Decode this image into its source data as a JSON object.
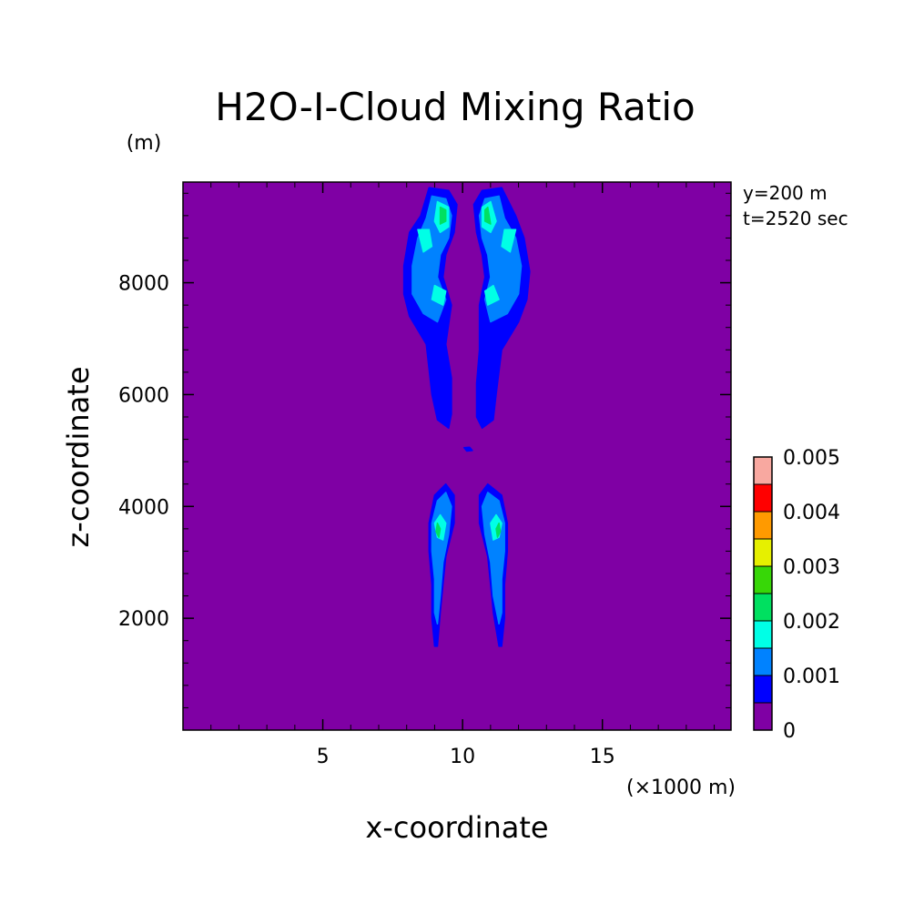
{
  "chart_data": {
    "type": "heatmap",
    "title": "H2O-I-Cloud Mixing Ratio",
    "xlabel": "x-coordinate",
    "ylabel": "z-coordinate",
    "x_unit": "(×1000 m)",
    "y_unit": "(m)",
    "xlim": [
      0,
      19.6
    ],
    "ylim": [
      0,
      9800
    ],
    "x_ticks": [
      5,
      10,
      15
    ],
    "y_ticks": [
      2000,
      4000,
      6000,
      8000
    ],
    "annotations": [
      "y=200 m",
      "t=2520 sec"
    ],
    "background_color": "#7f00a4",
    "colorbar": {
      "levels": [
        0,
        0.0005,
        0.001,
        0.0015,
        0.002,
        0.0025,
        0.003,
        0.0035,
        0.004,
        0.0045,
        0.005
      ],
      "colors": [
        "#7f00a4",
        "#0000ff",
        "#0082ff",
        "#00ffe6",
        "#00e060",
        "#37d707",
        "#e6f000",
        "#ff9a00",
        "#ff0000",
        "#f8a8a0"
      ],
      "tick_labels": [
        "0",
        "0.001",
        "0.002",
        "0.003",
        "0.004",
        "0.005"
      ],
      "tick_values": [
        0,
        0.001,
        0.002,
        0.003,
        0.004,
        0.005
      ]
    },
    "regions": [
      {
        "name": "upper-left-plume",
        "level": 1,
        "points": [
          [
            8.8,
            9700
          ],
          [
            9.5,
            9650
          ],
          [
            9.8,
            9400
          ],
          [
            9.7,
            8900
          ],
          [
            9.4,
            8500
          ],
          [
            9.3,
            8100
          ],
          [
            9.6,
            7600
          ],
          [
            9.4,
            6900
          ],
          [
            9.6,
            6300
          ],
          [
            9.6,
            5650
          ],
          [
            9.5,
            5400
          ],
          [
            9.1,
            5550
          ],
          [
            8.9,
            6000
          ],
          [
            8.7,
            6900
          ],
          [
            8.1,
            7400
          ],
          [
            7.9,
            7800
          ],
          [
            7.9,
            8300
          ],
          [
            8.1,
            8900
          ],
          [
            8.5,
            9200
          ],
          [
            8.8,
            9700
          ]
        ]
      },
      {
        "name": "upper-left-plume-inner",
        "level": 2,
        "points": [
          [
            8.9,
            9550
          ],
          [
            9.4,
            9500
          ],
          [
            9.6,
            9200
          ],
          [
            9.5,
            8800
          ],
          [
            9.2,
            8500
          ],
          [
            9.1,
            8100
          ],
          [
            9.4,
            7700
          ],
          [
            9.1,
            7300
          ],
          [
            8.6,
            7450
          ],
          [
            8.2,
            7800
          ],
          [
            8.2,
            8300
          ],
          [
            8.4,
            8800
          ],
          [
            8.7,
            9150
          ],
          [
            8.9,
            9550
          ]
        ]
      },
      {
        "name": "upper-left-core-a",
        "level": 3,
        "points": [
          [
            9.1,
            9450
          ],
          [
            9.5,
            9350
          ],
          [
            9.5,
            9000
          ],
          [
            9.2,
            8900
          ],
          [
            9.0,
            9100
          ],
          [
            9.1,
            9450
          ]
        ]
      },
      {
        "name": "upper-left-core-a-peak",
        "level": 4,
        "points": [
          [
            9.2,
            9350
          ],
          [
            9.4,
            9300
          ],
          [
            9.4,
            9100
          ],
          [
            9.2,
            9050
          ],
          [
            9.2,
            9350
          ]
        ]
      },
      {
        "name": "upper-left-core-b",
        "level": 3,
        "points": [
          [
            8.4,
            8950
          ],
          [
            8.8,
            8950
          ],
          [
            8.9,
            8650
          ],
          [
            8.6,
            8550
          ],
          [
            8.4,
            8950
          ]
        ]
      },
      {
        "name": "upper-left-core-c",
        "level": 3,
        "points": [
          [
            9.0,
            7950
          ],
          [
            9.4,
            7850
          ],
          [
            9.3,
            7600
          ],
          [
            8.9,
            7700
          ],
          [
            9.0,
            7950
          ]
        ]
      },
      {
        "name": "upper-right-plume",
        "level": 1,
        "points": [
          [
            11.4,
            9700
          ],
          [
            10.7,
            9650
          ],
          [
            10.4,
            9400
          ],
          [
            10.5,
            8900
          ],
          [
            10.7,
            8500
          ],
          [
            10.8,
            8100
          ],
          [
            10.6,
            7600
          ],
          [
            10.6,
            6800
          ],
          [
            10.5,
            6200
          ],
          [
            10.5,
            5600
          ],
          [
            10.7,
            5400
          ],
          [
            11.1,
            5550
          ],
          [
            11.2,
            6000
          ],
          [
            11.4,
            6800
          ],
          [
            12.0,
            7300
          ],
          [
            12.3,
            7700
          ],
          [
            12.4,
            8200
          ],
          [
            12.2,
            8800
          ],
          [
            11.9,
            9200
          ],
          [
            11.6,
            9500
          ],
          [
            11.4,
            9700
          ]
        ]
      },
      {
        "name": "upper-right-plume-inner",
        "level": 2,
        "points": [
          [
            11.3,
            9550
          ],
          [
            10.8,
            9500
          ],
          [
            10.6,
            9200
          ],
          [
            10.7,
            8800
          ],
          [
            10.9,
            8500
          ],
          [
            11.0,
            8100
          ],
          [
            10.8,
            7700
          ],
          [
            11.0,
            7300
          ],
          [
            11.6,
            7450
          ],
          [
            12.0,
            7800
          ],
          [
            12.1,
            8300
          ],
          [
            11.9,
            8800
          ],
          [
            11.5,
            9150
          ],
          [
            11.3,
            9550
          ]
        ]
      },
      {
        "name": "upper-right-core-a",
        "level": 3,
        "points": [
          [
            11.0,
            9450
          ],
          [
            10.7,
            9350
          ],
          [
            10.7,
            9000
          ],
          [
            11.0,
            8900
          ],
          [
            11.2,
            9100
          ],
          [
            11.0,
            9450
          ]
        ]
      },
      {
        "name": "upper-right-core-a-peak",
        "level": 4,
        "points": [
          [
            10.9,
            9350
          ],
          [
            10.8,
            9300
          ],
          [
            10.8,
            9100
          ],
          [
            11.0,
            9050
          ],
          [
            10.9,
            9350
          ]
        ]
      },
      {
        "name": "upper-right-core-b",
        "level": 3,
        "points": [
          [
            11.9,
            8950
          ],
          [
            11.5,
            8950
          ],
          [
            11.4,
            8650
          ],
          [
            11.7,
            8550
          ],
          [
            11.9,
            8950
          ]
        ]
      },
      {
        "name": "upper-right-core-c",
        "level": 3,
        "points": [
          [
            11.1,
            7950
          ],
          [
            10.8,
            7850
          ],
          [
            10.9,
            7600
          ],
          [
            11.3,
            7700
          ],
          [
            11.1,
            7950
          ]
        ]
      },
      {
        "name": "lower-left-plume",
        "level": 1,
        "points": [
          [
            9.4,
            4400
          ],
          [
            9.7,
            4200
          ],
          [
            9.7,
            3700
          ],
          [
            9.4,
            3100
          ],
          [
            9.3,
            2600
          ],
          [
            9.2,
            2100
          ],
          [
            9.1,
            1500
          ],
          [
            9.0,
            1500
          ],
          [
            8.9,
            2000
          ],
          [
            8.9,
            2600
          ],
          [
            8.8,
            3200
          ],
          [
            8.8,
            3700
          ],
          [
            9.0,
            4200
          ],
          [
            9.4,
            4400
          ]
        ]
      },
      {
        "name": "lower-left-plume-inner",
        "level": 2,
        "points": [
          [
            9.4,
            4250
          ],
          [
            9.6,
            4000
          ],
          [
            9.5,
            3500
          ],
          [
            9.3,
            3000
          ],
          [
            9.2,
            2400
          ],
          [
            9.1,
            1900
          ],
          [
            9.0,
            2100
          ],
          [
            9.0,
            2700
          ],
          [
            8.9,
            3200
          ],
          [
            8.9,
            3700
          ],
          [
            9.1,
            4100
          ],
          [
            9.4,
            4250
          ]
        ]
      },
      {
        "name": "lower-left-core",
        "level": 3,
        "points": [
          [
            9.2,
            3850
          ],
          [
            9.4,
            3700
          ],
          [
            9.3,
            3400
          ],
          [
            9.1,
            3450
          ],
          [
            9.0,
            3700
          ],
          [
            9.2,
            3850
          ]
        ]
      },
      {
        "name": "lower-left-core-peak",
        "level": 4,
        "points": [
          [
            9.1,
            3700
          ],
          [
            9.2,
            3600
          ],
          [
            9.15,
            3450
          ],
          [
            9.05,
            3550
          ],
          [
            9.1,
            3700
          ]
        ]
      },
      {
        "name": "lower-right-plume",
        "level": 1,
        "points": [
          [
            10.9,
            4400
          ],
          [
            10.6,
            4200
          ],
          [
            10.6,
            3700
          ],
          [
            10.9,
            3100
          ],
          [
            11.0,
            2600
          ],
          [
            11.1,
            2100
          ],
          [
            11.3,
            1500
          ],
          [
            11.4,
            1500
          ],
          [
            11.5,
            2000
          ],
          [
            11.5,
            2600
          ],
          [
            11.6,
            3200
          ],
          [
            11.6,
            3700
          ],
          [
            11.4,
            4200
          ],
          [
            10.9,
            4400
          ]
        ]
      },
      {
        "name": "lower-right-plume-inner",
        "level": 2,
        "points": [
          [
            10.9,
            4250
          ],
          [
            10.7,
            4000
          ],
          [
            10.8,
            3500
          ],
          [
            11.0,
            3000
          ],
          [
            11.1,
            2400
          ],
          [
            11.3,
            1900
          ],
          [
            11.4,
            2100
          ],
          [
            11.4,
            2700
          ],
          [
            11.5,
            3200
          ],
          [
            11.5,
            3700
          ],
          [
            11.3,
            4100
          ],
          [
            10.9,
            4250
          ]
        ]
      },
      {
        "name": "lower-right-core",
        "level": 3,
        "points": [
          [
            11.2,
            3850
          ],
          [
            11.0,
            3700
          ],
          [
            11.1,
            3400
          ],
          [
            11.3,
            3450
          ],
          [
            11.4,
            3700
          ],
          [
            11.2,
            3850
          ]
        ]
      },
      {
        "name": "lower-right-core-peak",
        "level": 4,
        "points": [
          [
            11.3,
            3700
          ],
          [
            11.2,
            3600
          ],
          [
            11.25,
            3450
          ],
          [
            11.35,
            3550
          ],
          [
            11.3,
            3700
          ]
        ]
      },
      {
        "name": "center-speck",
        "level": 1,
        "points": [
          [
            10.05,
            5050
          ],
          [
            10.25,
            5060
          ],
          [
            10.35,
            5000
          ],
          [
            10.15,
            4990
          ],
          [
            10.05,
            5050
          ]
        ]
      }
    ]
  }
}
